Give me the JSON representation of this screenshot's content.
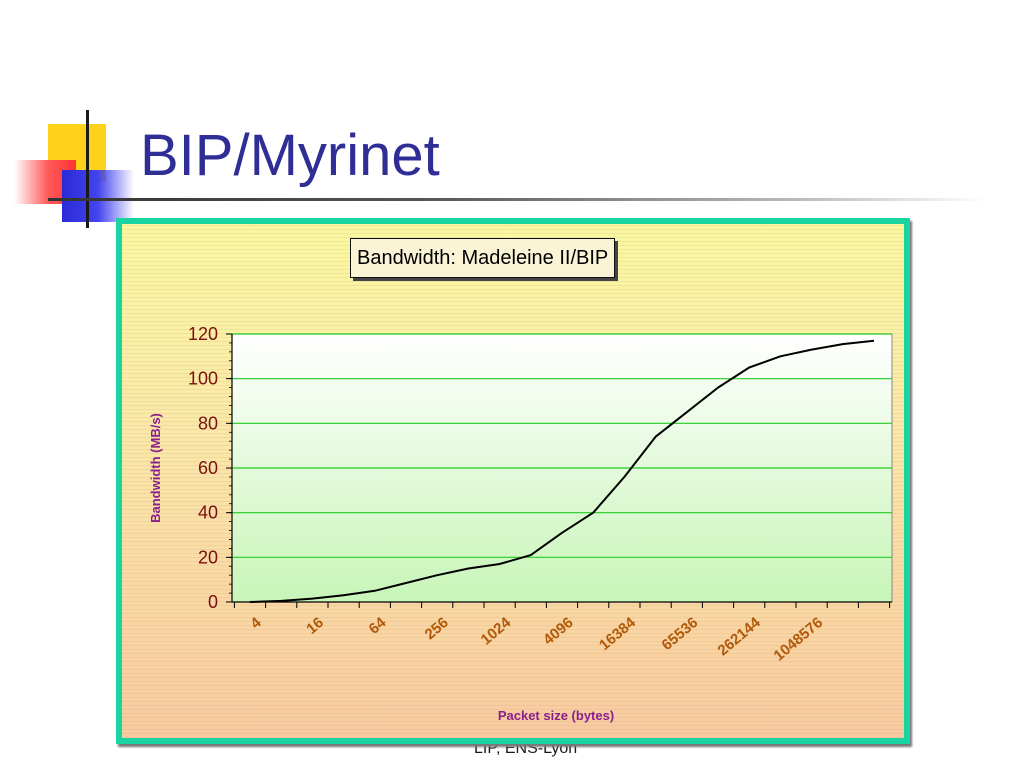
{
  "slide": {
    "title": "BIP/Myrinet",
    "footer": "LIP, ENS-Lyon"
  },
  "colors": {
    "title": "#2e2e96",
    "frame_border": "#19d3a0",
    "series_line": "#000000",
    "gridline": "#22cc22",
    "axis_label": "#8b1f8b",
    "x_tick": "#b05a0a",
    "y_tick": "#7a1010"
  },
  "chart_data": {
    "type": "line",
    "title": "Bandwidth: Madeleine II/BIP",
    "xlabel": "Packet size (bytes)",
    "ylabel": "Bandwidth (MB/s)",
    "x_scale": "log2",
    "ylim": [
      0,
      120
    ],
    "yticks": [
      0,
      20,
      40,
      60,
      80,
      100,
      120
    ],
    "xtick_labels": [
      "4",
      "16",
      "64",
      "256",
      "1024",
      "4096",
      "16384",
      "65536",
      "262144",
      "1048576"
    ],
    "grid": "horizontal",
    "legend": "none",
    "series": [
      {
        "x": [
          4,
          8,
          16,
          32,
          64,
          128,
          256,
          512,
          1024,
          2048,
          4096,
          8192,
          16384,
          32768,
          65536,
          131072,
          262144,
          524288,
          1048576,
          2097152,
          4194304
        ],
        "y": [
          0,
          0.5,
          1.5,
          3,
          5,
          8.5,
          12,
          15,
          17,
          21,
          31,
          40,
          56,
          74,
          85,
          96,
          105,
          110,
          113,
          115.5,
          117
        ]
      }
    ]
  }
}
